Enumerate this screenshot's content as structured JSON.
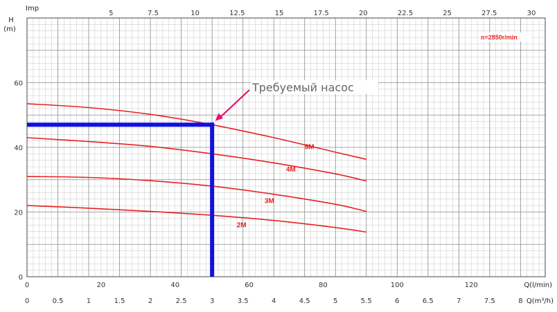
{
  "chart_data": {
    "type": "line",
    "title": "",
    "ylabel_top": "H",
    "ylabel_unit": "(m)",
    "top_axis_label": "Imp",
    "xlabel_lmin": "Q(l/min)",
    "xlabel_m3h": "Q(m³/h)",
    "speed_label": "n=2850r/min",
    "annotation": "Требуемый насос",
    "xlim_m3h": [
      0,
      8.4
    ],
    "ylim": [
      0,
      80
    ],
    "grid": true,
    "y_ticks": [
      0,
      20,
      40,
      60
    ],
    "x_ticks_lmin": [
      0,
      20,
      40,
      60,
      80,
      100,
      120
    ],
    "x_ticks_m3h": [
      "0",
      "0.5",
      "1",
      "1.5",
      "2",
      "2.5",
      "3",
      "3.5",
      "4",
      "4.5",
      "5",
      "5.5",
      "6",
      "6.5",
      "7",
      "7.5",
      "8"
    ],
    "x_ticks_imp": [
      "5",
      "7.5",
      "10",
      "12.5",
      "15",
      "17.5",
      "20",
      "22.5",
      "25",
      "27.5",
      "30"
    ],
    "series": [
      {
        "name": "5M",
        "color": "#e82020",
        "x": [
          0,
          1,
          2,
          3,
          4,
          5,
          5.5
        ],
        "y": [
          53.5,
          52.3,
          50.2,
          47.0,
          43.0,
          38.5,
          36.3
        ]
      },
      {
        "name": "4M",
        "color": "#e82020",
        "x": [
          0,
          1,
          2,
          3,
          4,
          5,
          5.5
        ],
        "y": [
          43.0,
          41.8,
          40.3,
          38.0,
          35.2,
          31.8,
          29.6
        ]
      },
      {
        "name": "3M",
        "color": "#e82020",
        "x": [
          0,
          1,
          2,
          3,
          4,
          5,
          5.5
        ],
        "y": [
          31.0,
          30.7,
          29.7,
          28.0,
          25.5,
          22.4,
          20.2
        ]
      },
      {
        "name": "2M",
        "color": "#e82020",
        "x": [
          0,
          1,
          2,
          3,
          4,
          5,
          5.5
        ],
        "y": [
          22.0,
          21.2,
          20.2,
          19.0,
          17.4,
          15.2,
          13.8
        ]
      }
    ],
    "selection": {
      "color": "#1010e0",
      "x": 3.0,
      "y": 47.0
    },
    "arrow_color": "#e8106e"
  }
}
